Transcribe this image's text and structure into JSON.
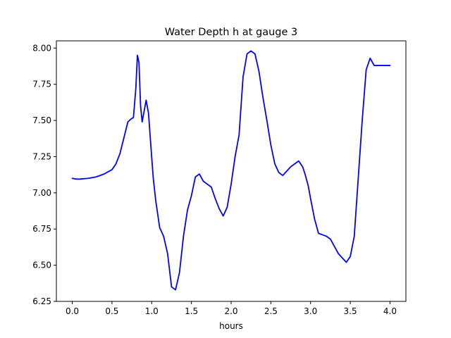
{
  "chart_data": {
    "type": "line",
    "title": "Water Depth h at gauge 3",
    "xlabel": "hours",
    "ylabel": "",
    "xlim": [
      -0.2,
      4.2
    ],
    "ylim": [
      6.25,
      8.05
    ],
    "xticks": [
      0.0,
      0.5,
      1.0,
      1.5,
      2.0,
      2.5,
      3.0,
      3.5,
      4.0
    ],
    "xtick_labels": [
      "0.0",
      "0.5",
      "1.0",
      "1.5",
      "2.0",
      "2.5",
      "3.0",
      "3.5",
      "4.0"
    ],
    "yticks": [
      6.25,
      6.5,
      6.75,
      7.0,
      7.25,
      7.5,
      7.75,
      8.0
    ],
    "ytick_labels": [
      "6.25",
      "6.50",
      "6.75",
      "7.00",
      "7.25",
      "7.50",
      "7.75",
      "8.00"
    ],
    "grid": false,
    "series": [
      {
        "color": "#0000ff",
        "x": [
          0.0,
          0.05,
          0.1,
          0.2,
          0.3,
          0.4,
          0.5,
          0.55,
          0.6,
          0.65,
          0.7,
          0.74,
          0.77,
          0.8,
          0.82,
          0.84,
          0.86,
          0.88,
          0.9,
          0.93,
          0.96,
          0.99,
          1.02,
          1.05,
          1.1,
          1.15,
          1.2,
          1.25,
          1.3,
          1.35,
          1.4,
          1.45,
          1.5,
          1.55,
          1.6,
          1.65,
          1.7,
          1.75,
          1.8,
          1.85,
          1.9,
          1.95,
          2.0,
          2.05,
          2.1,
          2.15,
          2.2,
          2.25,
          2.3,
          2.35,
          2.4,
          2.45,
          2.5,
          2.55,
          2.6,
          2.65,
          2.7,
          2.75,
          2.8,
          2.85,
          2.9,
          2.93,
          2.97,
          3.0,
          3.05,
          3.1,
          3.15,
          3.2,
          3.25,
          3.3,
          3.35,
          3.4,
          3.45,
          3.5,
          3.55,
          3.6,
          3.65,
          3.7,
          3.75,
          3.8,
          3.85,
          3.9,
          3.95,
          4.0
        ],
        "y": [
          7.1,
          7.095,
          7.095,
          7.1,
          7.11,
          7.13,
          7.16,
          7.2,
          7.27,
          7.38,
          7.49,
          7.51,
          7.52,
          7.72,
          7.95,
          7.9,
          7.6,
          7.49,
          7.55,
          7.64,
          7.55,
          7.32,
          7.1,
          6.95,
          6.76,
          6.7,
          6.58,
          6.35,
          6.33,
          6.45,
          6.7,
          6.88,
          6.98,
          7.11,
          7.13,
          7.08,
          7.06,
          7.04,
          6.96,
          6.89,
          6.84,
          6.9,
          7.06,
          7.25,
          7.4,
          7.8,
          7.96,
          7.98,
          7.96,
          7.84,
          7.66,
          7.5,
          7.33,
          7.2,
          7.14,
          7.12,
          7.15,
          7.18,
          7.2,
          7.22,
          7.18,
          7.13,
          7.05,
          6.96,
          6.82,
          6.72,
          6.71,
          6.7,
          6.68,
          6.63,
          6.58,
          6.55,
          6.52,
          6.56,
          6.7,
          7.1,
          7.5,
          7.85,
          7.93,
          7.88,
          7.88,
          7.88,
          7.88,
          7.88
        ]
      }
    ]
  }
}
